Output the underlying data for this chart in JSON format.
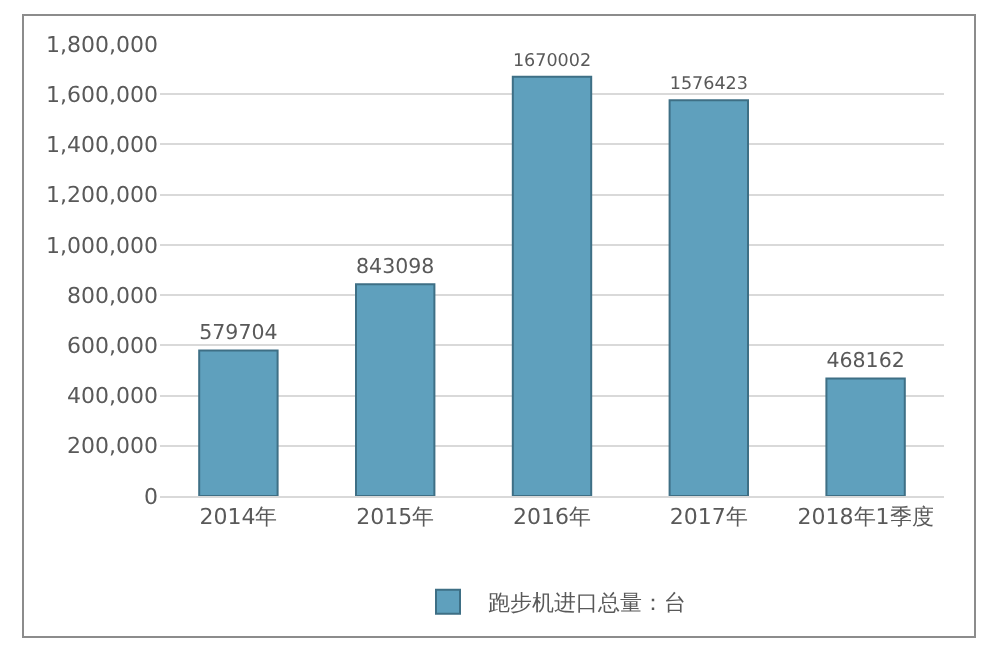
{
  "chart_data": {
    "type": "bar",
    "categories": [
      "2014年",
      "2015年",
      "2016年",
      "2017年",
      "2018年1季度"
    ],
    "series": [
      {
        "name": "跑步机进口总量：台",
        "color": "#5fa0bd",
        "values": [
          579704,
          843098,
          1670002,
          1576423,
          468162
        ]
      }
    ],
    "ylim": [
      0,
      1800000
    ],
    "yticks": [
      0,
      {
        "value": 200000,
        "label": "200,000"
      },
      {
        "value": 400000,
        "label": "400,000"
      },
      {
        "value": 600000,
        "label": "600,000"
      },
      {
        "value": 800000,
        "label": "800,000"
      },
      {
        "value": 1000000,
        "label": "1,000,000"
      },
      {
        "value": 1200000,
        "label": "1,200,000"
      },
      {
        "value": 1400000,
        "label": "1,400,000"
      },
      {
        "value": 1600000,
        "label": "1,600,000"
      },
      {
        "value": 1800000,
        "label": "1,800,000"
      }
    ],
    "grid": "y",
    "legend": "bottom",
    "data_labels": true
  }
}
